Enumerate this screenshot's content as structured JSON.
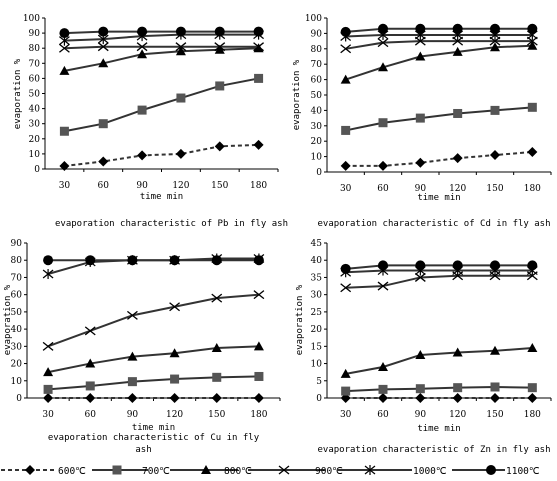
{
  "chart_data": [
    {
      "type": "line",
      "caption": "evaporation characteristic of Pb in fly ash",
      "xlabel": "time min",
      "ylabel": "evaporation %",
      "categories": [
        "30",
        "60",
        "90",
        "120",
        "150",
        "180"
      ],
      "ylim": [
        0,
        100
      ],
      "yticks": [
        0,
        10,
        20,
        30,
        40,
        50,
        60,
        70,
        80,
        90,
        100
      ],
      "series": [
        {
          "key": "s600",
          "values": [
            2,
            5,
            9,
            10,
            15,
            16
          ]
        },
        {
          "key": "s700",
          "values": [
            25,
            30,
            39,
            47,
            55,
            60
          ]
        },
        {
          "key": "s800",
          "values": [
            65,
            70,
            76,
            78,
            79,
            80
          ]
        },
        {
          "key": "s900",
          "values": [
            80,
            81,
            81,
            81,
            81,
            81
          ]
        },
        {
          "key": "s1000",
          "values": [
            85,
            86,
            88,
            89,
            89,
            89
          ]
        },
        {
          "key": "s1100",
          "values": [
            90,
            91,
            91,
            91,
            91,
            91
          ]
        }
      ]
    },
    {
      "type": "line",
      "caption": "evaporation characteristic of Cd in fly ash",
      "xlabel": "time min",
      "ylabel": "evaporation %",
      "categories": [
        "30",
        "60",
        "90",
        "120",
        "150",
        "180"
      ],
      "ylim": [
        0,
        100
      ],
      "yticks": [
        0,
        10,
        20,
        30,
        40,
        50,
        60,
        70,
        80,
        90,
        100
      ],
      "series": [
        {
          "key": "s600",
          "values": [
            4,
            4,
            6,
            9,
            11,
            13
          ]
        },
        {
          "key": "s700",
          "values": [
            27,
            32,
            35,
            38,
            40,
            42
          ]
        },
        {
          "key": "s800",
          "values": [
            60,
            68,
            75,
            78,
            81,
            82
          ]
        },
        {
          "key": "s900",
          "values": [
            80,
            84,
            85,
            85,
            85,
            85
          ]
        },
        {
          "key": "s1000",
          "values": [
            88,
            89,
            89,
            89,
            89,
            89
          ]
        },
        {
          "key": "s1100",
          "values": [
            91,
            93,
            93,
            93,
            93,
            93
          ]
        }
      ]
    },
    {
      "type": "line",
      "caption_lines": [
        "evaporation characteristic of Cu in fly",
        "ash"
      ],
      "xlabel": "time min",
      "ylabel": "evaporation %",
      "categories": [
        "30",
        "60",
        "90",
        "120",
        "150",
        "180"
      ],
      "ylim": [
        0,
        90
      ],
      "yticks": [
        0,
        10,
        20,
        30,
        40,
        50,
        60,
        70,
        80,
        90
      ],
      "series": [
        {
          "key": "s600",
          "values": [
            0,
            0,
            0,
            0,
            0,
            0
          ]
        },
        {
          "key": "s700",
          "values": [
            5,
            7,
            9.5,
            11,
            12,
            12.5
          ]
        },
        {
          "key": "s800",
          "values": [
            15,
            20,
            24,
            26,
            29,
            30
          ]
        },
        {
          "key": "s900",
          "values": [
            30,
            39,
            48,
            53,
            58,
            60
          ]
        },
        {
          "key": "s1000",
          "values": [
            72,
            79,
            80,
            80,
            81,
            81
          ]
        },
        {
          "key": "s1100",
          "values": [
            80,
            80,
            80,
            80,
            80,
            80
          ]
        }
      ]
    },
    {
      "type": "line",
      "caption": "evaporation characteristic of Zn in fly ash",
      "xlabel": "time min",
      "ylabel": "evaporation %",
      "categories": [
        "30",
        "60",
        "90",
        "120",
        "150",
        "180"
      ],
      "ylim": [
        0,
        45
      ],
      "yticks": [
        0,
        5,
        10,
        15,
        20,
        25,
        30,
        35,
        40,
        45
      ],
      "series": [
        {
          "key": "s600",
          "values": [
            0,
            0,
            0,
            0,
            0,
            0
          ]
        },
        {
          "key": "s700",
          "values": [
            2,
            2.5,
            2.7,
            3,
            3.2,
            3
          ]
        },
        {
          "key": "s800",
          "values": [
            7,
            9,
            12.5,
            13.2,
            13.7,
            14.5
          ]
        },
        {
          "key": "s900",
          "values": [
            32,
            32.5,
            35,
            35.5,
            35.5,
            35.5
          ]
        },
        {
          "key": "s1000",
          "values": [
            36.5,
            37,
            37,
            37,
            37,
            37
          ]
        },
        {
          "key": "s1100",
          "values": [
            37.5,
            38.5,
            38.5,
            38.5,
            38.5,
            38.5
          ]
        }
      ]
    }
  ],
  "legend": [
    {
      "key": "s600",
      "label": "600℃",
      "marker": "diamond",
      "dash": "dashed"
    },
    {
      "key": "s700",
      "label": "700℃",
      "marker": "square",
      "dash": "solid"
    },
    {
      "key": "s800",
      "label": "800℃",
      "marker": "triangle",
      "dash": "solid"
    },
    {
      "key": "s900",
      "label": "900℃",
      "marker": "x",
      "dash": "solid"
    },
    {
      "key": "s1000",
      "label": "1000℃",
      "marker": "star",
      "dash": "solid"
    },
    {
      "key": "s1100",
      "label": "1100℃",
      "marker": "circle",
      "dash": "solid"
    }
  ],
  "colors": {
    "line": "#333333",
    "marker": "#000000",
    "axis": "#000000"
  }
}
